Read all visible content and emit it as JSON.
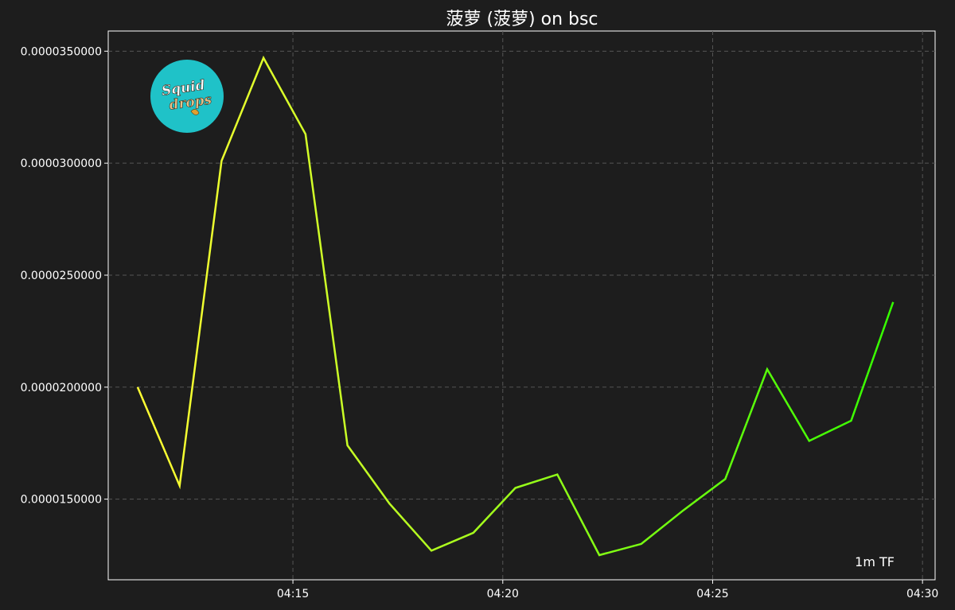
{
  "chart_data": {
    "type": "line",
    "title": "菠萝 (菠萝) on bsc",
    "timeframe_label": "1m TF",
    "x_tick_labels": [
      "04:15",
      "04:20",
      "04:25",
      "04:30"
    ],
    "y_tick_labels": [
      "0.0000150000",
      "0.0000200000",
      "0.0000250000",
      "0.0000300000",
      "0.0000350000"
    ],
    "x_ticks_minutes": [
      15,
      20,
      25,
      30
    ],
    "y_ticks": [
      1.5e-05,
      2e-05,
      2.5e-05,
      3e-05,
      3.5e-05
    ],
    "xlim_minutes": [
      10.6,
      30.3
    ],
    "ylim": [
      1.14e-05,
      3.59e-05
    ],
    "x_minutes": [
      11.3,
      12.3,
      13.3,
      14.3,
      15.3,
      16.3,
      17.3,
      18.3,
      19.3,
      20.3,
      21.3,
      22.3,
      23.3,
      24.3,
      25.3,
      26.3,
      27.3,
      28.3,
      29.3
    ],
    "values": [
      2e-05,
      1.56e-05,
      3.01e-05,
      3.47e-05,
      3.13e-05,
      1.74e-05,
      1.48e-05,
      1.27e-05,
      1.35e-05,
      1.55e-05,
      1.61e-05,
      1.25e-05,
      1.3e-05,
      1.45e-05,
      1.59e-05,
      2.08e-05,
      1.76e-05,
      1.85e-05,
      2.38e-05
    ],
    "grid": true,
    "line_gradient": [
      "#ffff33",
      "#33ff00"
    ],
    "logo_colors": {
      "circle": "#1fc2c8",
      "text": "#ffffff"
    }
  }
}
